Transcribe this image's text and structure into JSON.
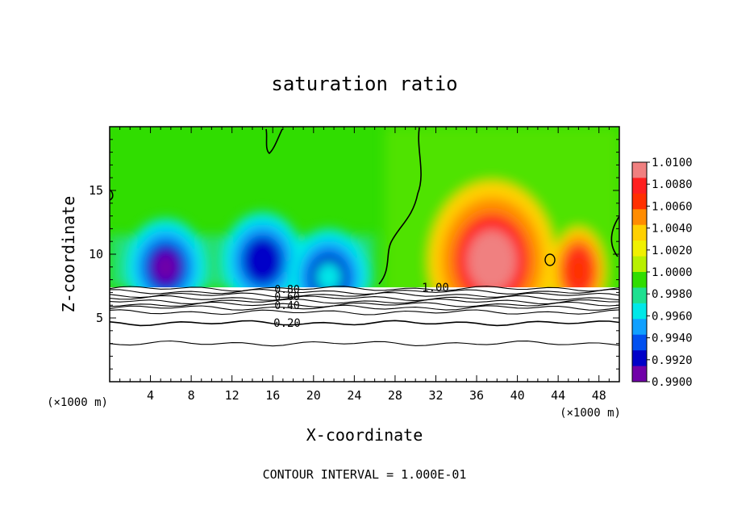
{
  "chart_data": {
    "type": "heatmap",
    "title": "saturation ratio",
    "xlabel": "X-coordinate",
    "ylabel": "Z-coordinate",
    "x_units": "(×1000 m)",
    "y_units": "(×1000 m)",
    "xlim": [
      0,
      50
    ],
    "ylim": [
      0,
      20
    ],
    "x_ticks": [
      "4",
      "8",
      "12",
      "16",
      "20",
      "24",
      "28",
      "32",
      "36",
      "40",
      "44",
      "48"
    ],
    "y_ticks": [
      "5",
      "10",
      "15"
    ],
    "footer": "CONTOUR INTERVAL = 1.000E-01",
    "colorbar": {
      "labels": [
        "1.0100",
        "1.0080",
        "1.0060",
        "1.0040",
        "1.0020",
        "1.0000",
        "0.9980",
        "0.9960",
        "0.9940",
        "0.9920",
        "0.9900"
      ],
      "colors": [
        "#f08080",
        "#ff2020",
        "#ff3000",
        "#ff8c00",
        "#ffd000",
        "#f0f000",
        "#b8f000",
        "#30dd00",
        "#1ee090",
        "#00e8e8",
        "#10a0ff",
        "#0050f0",
        "#0000c8",
        "#7000a8"
      ]
    },
    "contour_labels": [
      "0.80",
      "0.60",
      "0.40",
      "0.20",
      "1.00"
    ],
    "field": {
      "mask_top_z": 7.4,
      "features": [
        {
          "x": 5.5,
          "z": 9.5,
          "value": 0.9905
        },
        {
          "x": 15.0,
          "z": 10.0,
          "value": 0.9915
        },
        {
          "x": 21.5,
          "z": 8.7,
          "value": 0.9955
        },
        {
          "x": 37.5,
          "z": 10.0,
          "value": 1.0105
        },
        {
          "x": 46.0,
          "z": 9.2,
          "value": 1.0075
        }
      ]
    }
  }
}
